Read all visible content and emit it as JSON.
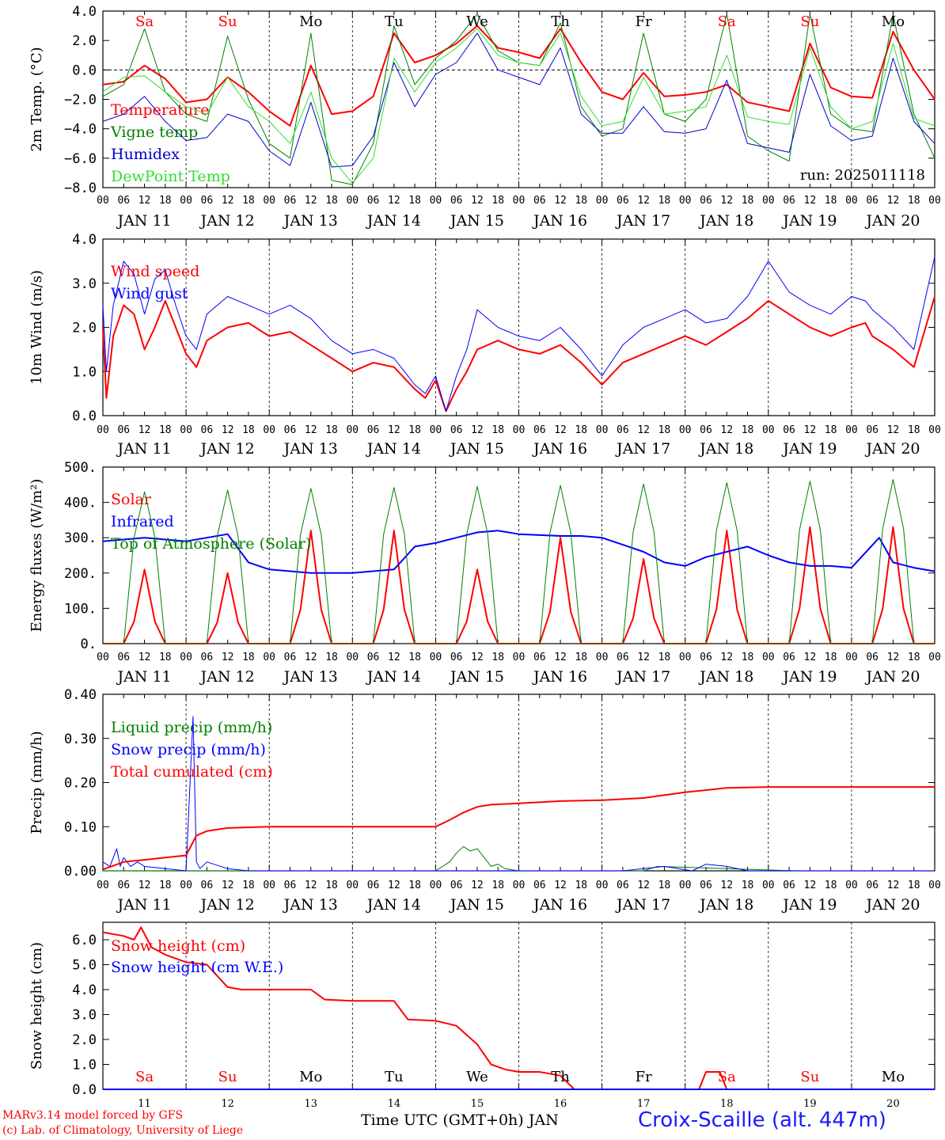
{
  "footer": {
    "credit1": "MARv3.14 model forced by GFS",
    "credit2": "(c) Lab. of Climatology, University of Liege",
    "xtitle": "Time UTC (GMT+0h) JAN",
    "station": "Croix-Scaille (alt. 447m)"
  },
  "chart_data": [
    {
      "type": "line",
      "ylabel": "2m Temp. (°C)",
      "ylim": [
        -8,
        4
      ],
      "yticks": [
        "4.0",
        "2.0",
        "0.0",
        "−2.0",
        "−4.0",
        "−6.0",
        "−8.0"
      ],
      "zero_line": true,
      "day_labels": [
        "Sa",
        "Su",
        "Mo",
        "Tu",
        "We",
        "Th",
        "Fr",
        "Sa",
        "Su",
        "Mo"
      ],
      "day_label_colors": [
        "#ff0000",
        "#ff0000",
        "#000000",
        "#000000",
        "#000000",
        "#000000",
        "#000000",
        "#ff0000",
        "#ff0000",
        "#000000"
      ],
      "hour_ticks": [
        "00",
        "06",
        "12",
        "18"
      ],
      "date_labels": [
        "JAN 11",
        "JAN 12",
        "JAN 13",
        "JAN 14",
        "JAN 15",
        "JAN 16",
        "JAN 17",
        "JAN 18",
        "JAN 19",
        "JAN 20"
      ],
      "annotation": "run: 2025011118",
      "x_hours": [
        0,
        6,
        12,
        18,
        24,
        30,
        36,
        42,
        48,
        54,
        60,
        66,
        72,
        78,
        84,
        90,
        96,
        102,
        108,
        114,
        120,
        126,
        132,
        138,
        144,
        150,
        156,
        162,
        168,
        174,
        180,
        186,
        192,
        198,
        204,
        210,
        216,
        222,
        228,
        234,
        240
      ],
      "series": [
        {
          "name": "Temperature",
          "color": "#ff0000",
          "width": 2,
          "values": [
            -1.0,
            -0.8,
            0.3,
            -0.6,
            -2.2,
            -2.0,
            -0.5,
            -1.5,
            -2.8,
            -3.8,
            0.3,
            -3.0,
            -2.8,
            -1.8,
            2.5,
            0.5,
            1.0,
            1.8,
            3.0,
            1.5,
            1.2,
            0.8,
            2.8,
            0.5,
            -1.5,
            -2.0,
            -0.2,
            -1.8,
            -1.7,
            -1.5,
            -1.0,
            -2.2,
            -2.5,
            -2.8,
            1.8,
            -1.2,
            -1.8,
            -1.9,
            2.6,
            0.0,
            -2.0
          ]
        },
        {
          "name": "Vigne temp",
          "color": "#008000",
          "width": 1,
          "values": [
            -1.8,
            -1.0,
            2.8,
            -1.5,
            -3.0,
            -3.5,
            2.3,
            -2.0,
            -5.0,
            -6.0,
            2.5,
            -7.5,
            -7.8,
            -5.0,
            3.0,
            -1.0,
            0.8,
            2.0,
            3.8,
            1.3,
            0.5,
            0.3,
            3.2,
            -2.5,
            -4.5,
            -4.0,
            2.5,
            -3.0,
            -3.5,
            -2.0,
            3.8,
            -4.5,
            -5.5,
            -6.2,
            3.8,
            -3.0,
            -4.0,
            -4.2,
            3.8,
            -3.0,
            -6.0
          ]
        },
        {
          "name": "Humidex",
          "color": "#0000cc",
          "width": 1,
          "values": [
            -3.5,
            -3.0,
            -1.8,
            -3.5,
            -4.8,
            -4.6,
            -3.0,
            -3.5,
            -5.5,
            -6.5,
            -2.2,
            -6.6,
            -6.5,
            -4.5,
            0.5,
            -2.5,
            -0.3,
            0.5,
            2.5,
            0.0,
            -0.5,
            -1.0,
            1.5,
            -3.0,
            -4.3,
            -4.3,
            -2.5,
            -4.2,
            -4.3,
            -4.0,
            -0.7,
            -5.0,
            -5.3,
            -5.6,
            -0.3,
            -3.8,
            -4.8,
            -4.5,
            0.8,
            -3.5,
            -5.0
          ]
        },
        {
          "name": "DewPoint Temp",
          "color": "#33dd33",
          "width": 1,
          "values": [
            -1.5,
            -0.5,
            -0.4,
            -1.5,
            -2.5,
            -3.0,
            -0.5,
            -2.5,
            -3.5,
            -5.0,
            -1.5,
            -6.0,
            -7.7,
            -6.0,
            0.8,
            -1.5,
            0.5,
            1.5,
            2.8,
            1.0,
            0.5,
            0.3,
            2.5,
            -1.8,
            -3.8,
            -3.5,
            -0.5,
            -3.0,
            -2.8,
            -2.5,
            1.0,
            -3.2,
            -3.5,
            -3.7,
            1.5,
            -2.5,
            -4.0,
            -3.5,
            1.8,
            -3.3,
            -3.8
          ]
        }
      ]
    },
    {
      "type": "line",
      "ylabel": "10m Wind (m/s)",
      "ylim": [
        0,
        4
      ],
      "yticks": [
        "4.0",
        "3.0",
        "2.0",
        "1.0",
        "0.0"
      ],
      "hour_ticks": [
        "00",
        "06",
        "12",
        "18"
      ],
      "date_labels": [
        "JAN 11",
        "JAN 12",
        "JAN 13",
        "JAN 14",
        "JAN 15",
        "JAN 16",
        "JAN 17",
        "JAN 18",
        "JAN 19",
        "JAN 20"
      ],
      "x_hours": [
        0,
        1,
        3,
        6,
        9,
        12,
        15,
        18,
        21,
        24,
        27,
        30,
        36,
        42,
        48,
        54,
        60,
        66,
        72,
        78,
        84,
        90,
        93,
        96,
        99,
        102,
        105,
        108,
        114,
        120,
        126,
        132,
        138,
        144,
        150,
        156,
        162,
        168,
        174,
        180,
        186,
        192,
        198,
        204,
        210,
        216,
        220,
        222,
        228,
        234,
        240
      ],
      "series": [
        {
          "name": "Wind speed",
          "color": "#ff0000",
          "width": 2,
          "values": [
            2.0,
            0.4,
            1.8,
            2.5,
            2.3,
            1.5,
            2.0,
            2.6,
            2.0,
            1.4,
            1.1,
            1.7,
            2.0,
            2.1,
            1.8,
            1.9,
            1.6,
            1.3,
            1.0,
            1.2,
            1.1,
            0.6,
            0.4,
            0.8,
            0.1,
            0.6,
            1.0,
            1.5,
            1.7,
            1.5,
            1.4,
            1.6,
            1.2,
            0.7,
            1.2,
            1.4,
            1.6,
            1.8,
            1.6,
            1.9,
            2.2,
            2.6,
            2.3,
            2.0,
            1.8,
            2.0,
            2.1,
            1.8,
            1.5,
            1.1,
            2.7
          ]
        },
        {
          "name": "Wind gust",
          "color": "#0000ff",
          "width": 1,
          "values": [
            2.5,
            1.0,
            2.5,
            3.5,
            3.2,
            2.3,
            3.1,
            3.3,
            2.5,
            1.8,
            1.5,
            2.3,
            2.7,
            2.5,
            2.3,
            2.5,
            2.2,
            1.7,
            1.4,
            1.5,
            1.3,
            0.7,
            0.5,
            0.9,
            0.1,
            0.9,
            1.5,
            2.4,
            2.0,
            1.8,
            1.7,
            2.0,
            1.5,
            0.9,
            1.6,
            2.0,
            2.2,
            2.4,
            2.1,
            2.2,
            2.7,
            3.5,
            2.8,
            2.5,
            2.3,
            2.7,
            2.6,
            2.4,
            2.0,
            1.5,
            3.6
          ]
        }
      ]
    },
    {
      "type": "line",
      "ylabel": "Energy fluxes (W/m²)",
      "ylim": [
        0,
        500
      ],
      "yticks": [
        "500.",
        "400.",
        "300.",
        "200.",
        "100.",
        "0."
      ],
      "hour_ticks": [
        "00",
        "06",
        "12",
        "18"
      ],
      "date_labels": [
        "JAN 11",
        "JAN 12",
        "JAN 13",
        "JAN 14",
        "JAN 15",
        "JAN 16",
        "JAN 17",
        "JAN 18",
        "JAN 19",
        "JAN 20"
      ],
      "daytime_hours": [
        6,
        9,
        12,
        15,
        18
      ],
      "series": [
        {
          "name": "Solar",
          "color": "#ff0000",
          "width": 2,
          "daily_peak": [
            210,
            200,
            320,
            320,
            210,
            300,
            240,
            320,
            330,
            330
          ]
        },
        {
          "name": "Infrared",
          "color": "#0000ff",
          "width": 2,
          "x_hours": [
            0,
            12,
            24,
            36,
            42,
            48,
            60,
            72,
            84,
            90,
            96,
            102,
            108,
            114,
            120,
            132,
            138,
            144,
            150,
            156,
            162,
            168,
            174,
            180,
            186,
            192,
            198,
            204,
            210,
            216,
            224,
            228,
            234,
            240
          ],
          "values": [
            290,
            300,
            290,
            310,
            230,
            210,
            200,
            200,
            210,
            275,
            285,
            300,
            315,
            320,
            310,
            305,
            305,
            300,
            280,
            260,
            230,
            220,
            245,
            260,
            275,
            250,
            230,
            220,
            220,
            215,
            300,
            230,
            215,
            205
          ]
        },
        {
          "name": "Top of Atmosphere (Solar)",
          "color": "#008000",
          "width": 1,
          "daily_peak": [
            430,
            435,
            440,
            442,
            445,
            448,
            452,
            456,
            460,
            465
          ]
        }
      ]
    },
    {
      "type": "line",
      "ylabel": "Precip (mm/h)",
      "ylim": [
        0,
        0.4
      ],
      "yticks": [
        "0.40",
        "0.30",
        "0.20",
        "0.10",
        "0.00"
      ],
      "hour_ticks": [
        "00",
        "06",
        "12",
        "18"
      ],
      "date_labels": [
        "JAN 11",
        "JAN 12",
        "JAN 13",
        "JAN 14",
        "JAN 15",
        "JAN 16",
        "JAN 17",
        "JAN 18",
        "JAN 19",
        "JAN 20"
      ],
      "series": [
        {
          "name": "Liquid precip (mm/h)",
          "color": "#008000",
          "width": 1,
          "x_hours": [
            0,
            96,
            100,
            102,
            104,
            106,
            108,
            112,
            114,
            116,
            120,
            156,
            160,
            180,
            200,
            240
          ],
          "values": [
            0,
            0,
            0.02,
            0.04,
            0.055,
            0.045,
            0.05,
            0.01,
            0.015,
            0.005,
            0,
            0,
            0.01,
            0.005,
            0,
            0
          ]
        },
        {
          "name": "Snow precip (mm/h)",
          "color": "#0000ff",
          "width": 1,
          "x_hours": [
            0,
            2,
            4,
            5,
            6,
            8,
            10,
            12,
            18,
            24,
            26,
            27,
            28,
            30,
            36,
            42,
            48,
            96,
            150,
            162,
            170,
            174,
            180,
            186,
            240
          ],
          "values": [
            0.02,
            0.01,
            0.05,
            0.01,
            0.03,
            0.01,
            0.02,
            0.01,
            0.005,
            0,
            0.35,
            0.02,
            0.005,
            0.02,
            0.005,
            0,
            0,
            0,
            0,
            0.01,
            0,
            0.015,
            0.01,
            0,
            0
          ]
        },
        {
          "name": "Total cumulated (cm)",
          "color": "#ff0000",
          "width": 2,
          "x_hours": [
            0,
            6,
            12,
            18,
            24,
            27,
            30,
            36,
            48,
            96,
            100,
            104,
            108,
            112,
            120,
            132,
            144,
            156,
            168,
            180,
            192,
            240
          ],
          "values": [
            0.003,
            0.02,
            0.025,
            0.03,
            0.035,
            0.08,
            0.09,
            0.097,
            0.1,
            0.1,
            0.115,
            0.132,
            0.145,
            0.15,
            0.153,
            0.158,
            0.16,
            0.165,
            0.178,
            0.188,
            0.19,
            0.19
          ]
        }
      ]
    },
    {
      "type": "line",
      "ylabel": "Snow height (cm)",
      "ylim": [
        0,
        6.7
      ],
      "yticks": [
        "6.0",
        "5.0",
        "4.0",
        "3.0",
        "2.0",
        "1.0",
        "0.0"
      ],
      "day_labels": [
        "Sa",
        "Su",
        "Mo",
        "Tu",
        "We",
        "Th",
        "Fr",
        "Sa",
        "Su",
        "Mo"
      ],
      "day_label_colors": [
        "#ff0000",
        "#ff0000",
        "#000000",
        "#000000",
        "#000000",
        "#000000",
        "#000000",
        "#ff0000",
        "#ff0000",
        "#000000"
      ],
      "date_labels": [
        "11",
        "12",
        "13",
        "14",
        "15",
        "16",
        "17",
        "18",
        "19",
        "20"
      ],
      "series": [
        {
          "name": "Snow height (cm)",
          "color": "#ff0000",
          "width": 2,
          "x_hours": [
            0,
            6,
            9,
            11,
            14,
            18,
            24,
            30,
            36,
            40,
            48,
            60,
            64,
            72,
            84,
            88,
            96,
            102,
            108,
            112,
            116,
            120,
            126,
            132,
            136,
            138,
            172,
            174,
            178,
            180,
            241
          ],
          "values": [
            6.3,
            6.15,
            6.0,
            6.5,
            5.7,
            5.4,
            5.1,
            5.0,
            4.1,
            4.0,
            4.0,
            4.0,
            3.6,
            3.55,
            3.55,
            2.8,
            2.75,
            2.55,
            1.8,
            1.0,
            0.8,
            0.7,
            0.7,
            0.55,
            0,
            0,
            0,
            0.7,
            0.7,
            0,
            0
          ]
        },
        {
          "name": "Snow height (cm W.E.)",
          "color": "#0000ff",
          "width": 2,
          "x_hours": [
            0,
            241
          ],
          "values": [
            0,
            0
          ]
        }
      ]
    }
  ]
}
